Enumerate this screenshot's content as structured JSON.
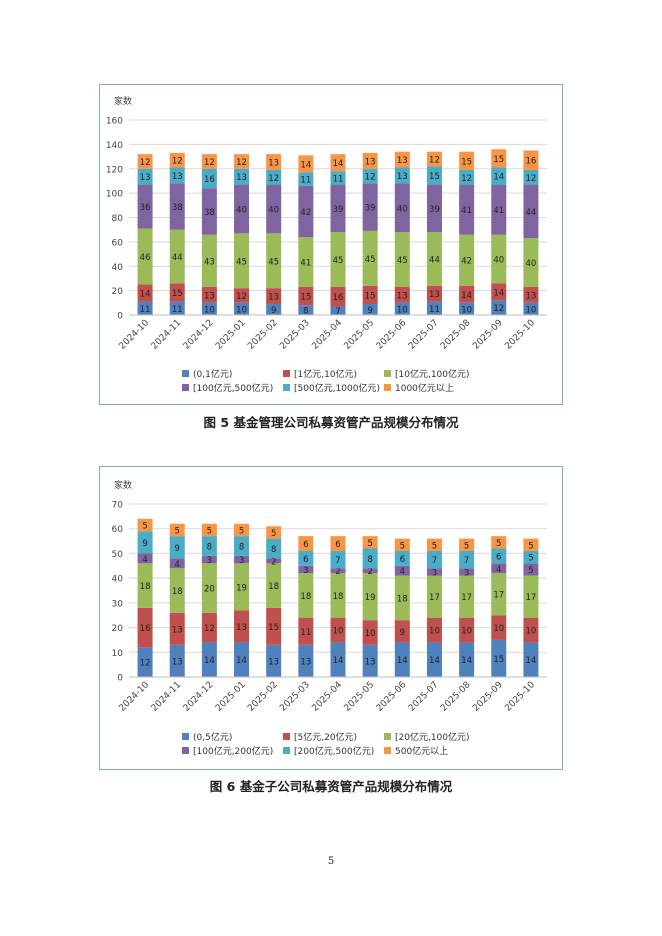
{
  "charts": [
    {
      "caption": "图 5   基金管理公司私募资管产品规模分布情况",
      "chart_data": {
        "type": "bar",
        "stacked": true,
        "ylabel": "家数",
        "ylim": [
          0,
          160
        ],
        "yticks": [
          0,
          20,
          40,
          60,
          80,
          100,
          120,
          140,
          160
        ],
        "grid": true,
        "legend": "bottom",
        "categories": [
          "2024-10",
          "2024-11",
          "2024-12",
          "2025-01",
          "2025-02",
          "2025-03",
          "2025-04",
          "2025-05",
          "2025-06",
          "2025-07",
          "2025-08",
          "2025-09",
          "2025-10"
        ],
        "series": [
          {
            "name": "(0,1亿元)",
            "color": "#4f81bd",
            "values": [
              11,
              11,
              10,
              10,
              9,
              8,
              7,
              9,
              10,
              11,
              10,
              12,
              10
            ]
          },
          {
            "name": "[1亿元,10亿元)",
            "color": "#c0504d",
            "values": [
              14,
              15,
              13,
              12,
              13,
              15,
              16,
              15,
              13,
              13,
              14,
              14,
              13
            ]
          },
          {
            "name": "[10亿元,100亿元)",
            "color": "#9bbb59",
            "values": [
              46,
              44,
              43,
              45,
              45,
              41,
              45,
              45,
              45,
              44,
              42,
              40,
              40
            ]
          },
          {
            "name": "[100亿元,500亿元)",
            "color": "#8064a2",
            "values": [
              36,
              38,
              38,
              40,
              40,
              42,
              39,
              39,
              40,
              39,
              41,
              41,
              44
            ]
          },
          {
            "name": "[500亿元,1000亿元)",
            "color": "#4bacc6",
            "values": [
              13,
              13,
              16,
              13,
              12,
              11,
              11,
              12,
              13,
              15,
              12,
              14,
              12
            ]
          },
          {
            "name": "1000亿元以上",
            "color": "#f79646",
            "values": [
              12,
              12,
              12,
              12,
              13,
              14,
              14,
              13,
              13,
              12,
              15,
              15,
              16
            ]
          }
        ]
      }
    },
    {
      "caption": "图 6   基金子公司私募资管产品规模分布情况",
      "chart_data": {
        "type": "bar",
        "stacked": true,
        "ylabel": "家数",
        "ylim": [
          0,
          70
        ],
        "yticks": [
          0,
          10,
          20,
          30,
          40,
          50,
          60,
          70
        ],
        "grid": true,
        "legend": "bottom",
        "categories": [
          "2024-10",
          "2024-11",
          "2024-12",
          "2025-01",
          "2025-02",
          "2025-03",
          "2025-04",
          "2025-05",
          "2025-06",
          "2025-07",
          "2025-08",
          "2025-09",
          "2025-10"
        ],
        "series": [
          {
            "name": "(0,5亿元)",
            "color": "#4f81bd",
            "values": [
              12,
              13,
              14,
              14,
              13,
              13,
              14,
              13,
              14,
              14,
              14,
              15,
              14
            ]
          },
          {
            "name": "[5亿元,20亿元)",
            "color": "#c0504d",
            "values": [
              16,
              13,
              12,
              13,
              15,
              11,
              10,
              10,
              9,
              10,
              10,
              10,
              10
            ]
          },
          {
            "name": "[20亿元,100亿元)",
            "color": "#9bbb59",
            "values": [
              18,
              18,
              20,
              19,
              18,
              18,
              18,
              19,
              18,
              17,
              17,
              17,
              17
            ]
          },
          {
            "name": "[100亿元,200亿元)",
            "color": "#8064a2",
            "values": [
              4,
              4,
              3,
              3,
              2,
              3,
              2,
              2,
              4,
              3,
              3,
              4,
              5
            ]
          },
          {
            "name": "[200亿元,500亿元)",
            "color": "#4bacc6",
            "values": [
              9,
              9,
              8,
              8,
              8,
              6,
              7,
              8,
              6,
              7,
              7,
              6,
              5
            ]
          },
          {
            "name": "500亿元以上",
            "color": "#f79646",
            "values": [
              5,
              5,
              5,
              5,
              5,
              6,
              6,
              5,
              5,
              5,
              5,
              5,
              5
            ]
          }
        ]
      }
    }
  ],
  "page_number": "5"
}
